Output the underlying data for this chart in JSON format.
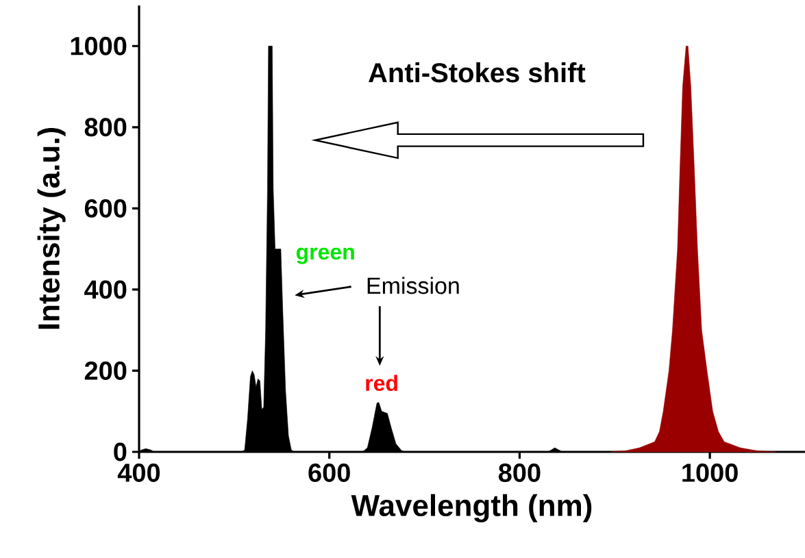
{
  "chart_data": {
    "type": "area",
    "xlabel": "Wavelength (nm)",
    "ylabel": "Intensity (a.u.)",
    "xlim": [
      400,
      1100
    ],
    "ylim": [
      0,
      1100
    ],
    "xticks": [
      400,
      600,
      800,
      1000
    ],
    "yticks": [
      0,
      200,
      400,
      600,
      800,
      1000
    ],
    "grid": false,
    "annotations": [
      "Anti-Stokes shift",
      "green",
      "Emission",
      "red"
    ],
    "series": [
      {
        "color": "#000000",
        "x": [
          400,
          403,
          407,
          412,
          416,
          508,
          511,
          514,
          517,
          519,
          521,
          523,
          525,
          527,
          529,
          531,
          533,
          535,
          536,
          540,
          541,
          543,
          549,
          551,
          554,
          557,
          560,
          563,
          635,
          640,
          645,
          650,
          652,
          655,
          661,
          665,
          670,
          676,
          680,
          830,
          837,
          845,
          900
        ],
        "values": [
          2,
          5,
          8,
          5,
          0,
          0,
          5,
          80,
          185,
          200,
          190,
          160,
          180,
          175,
          105,
          110,
          300,
          650,
          1000,
          1000,
          650,
          500,
          500,
          350,
          150,
          40,
          5,
          0,
          0,
          10,
          60,
          120,
          122,
          100,
          95,
          60,
          20,
          3,
          0,
          0,
          10,
          0,
          0
        ]
      },
      {
        "color": "#9b0000",
        "x": [
          896,
          912,
          926,
          942,
          947,
          951,
          957,
          960.7,
          966,
          968.6,
          971.4,
          975,
          977,
          980,
          983.6,
          987,
          991.4,
          997,
          1003,
          1009,
          1015,
          1032,
          1049,
          1069
        ],
        "values": [
          0,
          3,
          10,
          25,
          50,
          100,
          200,
          300,
          500,
          700,
          900,
          1000,
          1000,
          900,
          700,
          500,
          300,
          200,
          100,
          50,
          25,
          10,
          3,
          0
        ]
      }
    ]
  }
}
